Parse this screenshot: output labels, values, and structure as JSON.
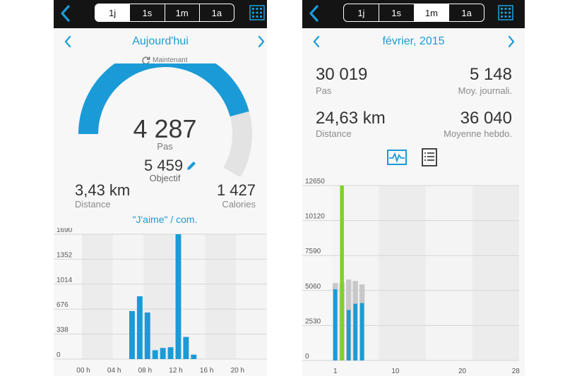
{
  "left": {
    "tabs": [
      "1j",
      "1s",
      "1m",
      "1a"
    ],
    "active_tab": "1j",
    "nav_title": "Aujourd'hui",
    "refresh_label": "Maintenant",
    "steps": "4 287",
    "steps_label": "Pas",
    "goal": "5 459",
    "goal_label": "Objectif",
    "goal_progress": 0.785,
    "distance": "3,43 km",
    "distance_label": "Distance",
    "calories": "1 427",
    "calories_label": "Calories",
    "social_link": "\"J'aime\" / com.",
    "accent_color": "#1a9bd7",
    "track_color": "#e3e3e3",
    "icons": [
      "back-icon",
      "calendar-icon",
      "chevron-left-icon",
      "chevron-right-icon",
      "refresh-icon",
      "pencil-icon"
    ]
  },
  "right": {
    "tabs": [
      "1j",
      "1s",
      "1m",
      "1a"
    ],
    "active_tab": "1m",
    "nav_title": "février, 2015",
    "total_steps": "30 019",
    "total_steps_label": "Pas",
    "daily_avg": "5 148",
    "daily_avg_label": "Moy. journali.",
    "distance": "24,63 km",
    "distance_label": "Distance",
    "weekly_avg": "36 040",
    "weekly_avg_label": "Moyenne hebdo.",
    "icons": [
      "back-icon",
      "calendar-icon",
      "chevron-left-icon",
      "chevron-right-icon",
      "activity-chart-icon",
      "list-icon"
    ]
  },
  "chart_data": [
    {
      "type": "bar",
      "title": "",
      "x": [
        "06h",
        "07h",
        "08h",
        "09h",
        "10h",
        "11h",
        "12h",
        "13h",
        "14h"
      ],
      "values": [
        650,
        850,
        630,
        120,
        150,
        160,
        1690,
        300,
        60
      ],
      "xticks": [
        "00 h",
        "04 h",
        "08 h",
        "12 h",
        "16 h",
        "20 h"
      ],
      "yticks": [
        "0",
        "338",
        "676",
        "1014",
        "1352",
        "1690"
      ],
      "ylim": [
        0,
        1690
      ],
      "color": "#1a9bd7",
      "grid": true
    },
    {
      "type": "bar",
      "title": "",
      "x": [
        1,
        2,
        3,
        4,
        5,
        6
      ],
      "series": [
        {
          "values": [
            5150,
            12650,
            3650,
            4100,
            4150,
            0
          ],
          "color": "#1a9bd7",
          "highlight": {
            "index": 1,
            "color": "#7ed321"
          }
        },
        {
          "values": [
            5600,
            5600,
            5850,
            5750,
            5500,
            0
          ],
          "color": "#c8c8c8"
        }
      ],
      "xticks": [
        "1",
        "10",
        "20",
        "28"
      ],
      "yticks": [
        "0",
        "2530",
        "5060",
        "7590",
        "10120",
        "12650"
      ],
      "ylim": [
        0,
        12650
      ],
      "grid": true
    }
  ]
}
